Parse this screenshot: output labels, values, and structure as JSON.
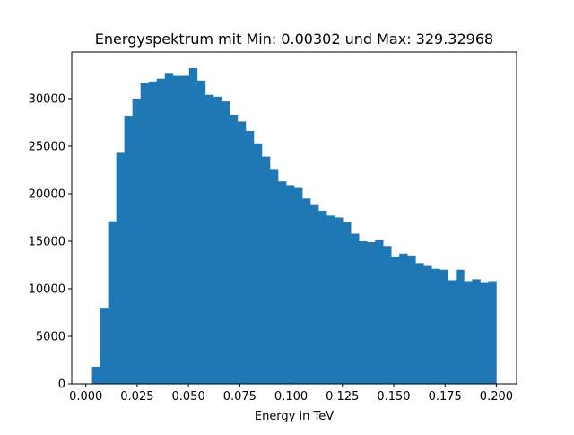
{
  "chart_data": {
    "type": "bar",
    "title": "Energyspektrum mit Min: 0.00302 und Max: 329.32968",
    "xlabel": "Energy in TeV",
    "ylabel": "",
    "bar_color": "#1f77b4",
    "xlim": [
      -0.00685,
      0.20987
    ],
    "ylim": [
      0,
      34900
    ],
    "grid": false,
    "x_ticks": [
      "0.000",
      "0.025",
      "0.050",
      "0.075",
      "0.100",
      "0.125",
      "0.150",
      "0.175",
      "0.200"
    ],
    "y_ticks": [
      "0",
      "5000",
      "10000",
      "15000",
      "20000",
      "25000",
      "30000"
    ],
    "bin_range": [
      0.00302,
      0.2
    ],
    "bins": 50,
    "values": [
      1800,
      8000,
      17100,
      24300,
      28200,
      30000,
      31700,
      31800,
      32100,
      32700,
      32400,
      32400,
      33200,
      31900,
      30400,
      30200,
      29700,
      28300,
      27600,
      26600,
      25300,
      23900,
      22600,
      21300,
      20900,
      20600,
      19500,
      18800,
      18200,
      17700,
      17500,
      17000,
      15800,
      15000,
      14900,
      15100,
      14500,
      13400,
      13700,
      13500,
      12700,
      12400,
      12100,
      12000,
      10900,
      12000,
      10800,
      11000,
      10700,
      10800
    ]
  }
}
